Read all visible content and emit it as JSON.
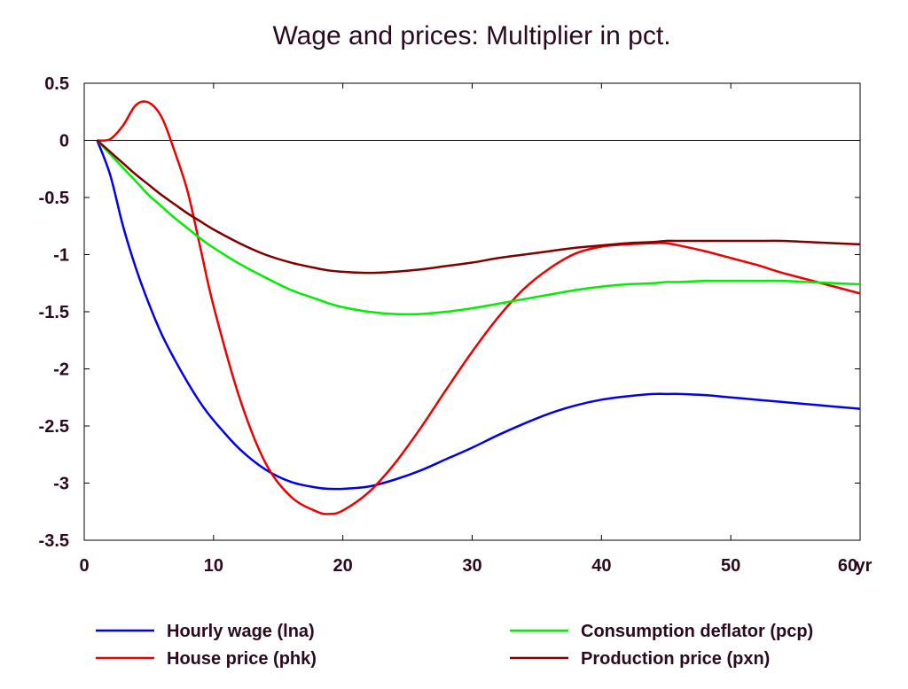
{
  "chart_data": {
    "type": "line",
    "title": "Wage and prices: Multiplier in pct.",
    "xlabel": "",
    "ylabel": "",
    "x_unit": "yr",
    "xlim": [
      0,
      60
    ],
    "ylim": [
      -3.5,
      0.5
    ],
    "x_ticks": [
      0,
      10,
      20,
      30,
      40,
      50,
      60
    ],
    "x_tick_labels": [
      "0",
      "10",
      "20",
      "30",
      "40",
      "50",
      "60"
    ],
    "y_ticks": [
      0.5,
      0,
      -0.5,
      -1,
      -1.5,
      -2,
      -2.5,
      -3,
      -3.5
    ],
    "y_tick_labels": [
      "0.5",
      "0",
      "-0.5",
      "-1",
      "-1.5",
      "-2",
      "-2.5",
      "-3",
      "-3.5"
    ],
    "zero_line": true,
    "grid": false,
    "legend_position": "bottom",
    "x": [
      1,
      2,
      3,
      4,
      5,
      6,
      7,
      8,
      9,
      10,
      12,
      14,
      16,
      18,
      19,
      20,
      22,
      24,
      26,
      28,
      30,
      32,
      34,
      36,
      38,
      40,
      42,
      44,
      45,
      46,
      48,
      50,
      52,
      54,
      56,
      58,
      60
    ],
    "series": [
      {
        "name": "Hourly wage (lna)",
        "color": "#0000ee",
        "values": [
          0,
          -0.3,
          -0.75,
          -1.12,
          -1.43,
          -1.7,
          -1.92,
          -2.12,
          -2.3,
          -2.45,
          -2.7,
          -2.88,
          -2.99,
          -3.04,
          -3.05,
          -3.05,
          -3.03,
          -2.97,
          -2.89,
          -2.79,
          -2.69,
          -2.58,
          -2.48,
          -2.39,
          -2.32,
          -2.27,
          -2.24,
          -2.22,
          -2.22,
          -2.22,
          -2.23,
          -2.25,
          -2.27,
          -2.29,
          -2.31,
          -2.33,
          -2.35
        ]
      },
      {
        "name": "House price (phk)",
        "color": "#ee0000",
        "values": [
          0,
          0.01,
          0.13,
          0.31,
          0.33,
          0.2,
          -0.1,
          -0.45,
          -0.95,
          -1.45,
          -2.25,
          -2.82,
          -3.12,
          -3.25,
          -3.27,
          -3.24,
          -3.08,
          -2.83,
          -2.52,
          -2.18,
          -1.85,
          -1.55,
          -1.3,
          -1.12,
          -0.99,
          -0.93,
          -0.91,
          -0.9,
          -0.9,
          -0.92,
          -0.97,
          -1.03,
          -1.09,
          -1.16,
          -1.22,
          -1.28,
          -1.34
        ]
      },
      {
        "name": "Consumption deflator (pcp)",
        "color": "#00ee00",
        "values": [
          0,
          -0.12,
          -0.24,
          -0.36,
          -0.48,
          -0.58,
          -0.68,
          -0.77,
          -0.86,
          -0.94,
          -1.08,
          -1.2,
          -1.31,
          -1.39,
          -1.43,
          -1.46,
          -1.5,
          -1.52,
          -1.52,
          -1.5,
          -1.47,
          -1.43,
          -1.39,
          -1.35,
          -1.31,
          -1.28,
          -1.26,
          -1.25,
          -1.24,
          -1.24,
          -1.23,
          -1.23,
          -1.23,
          -1.23,
          -1.24,
          -1.25,
          -1.26
        ]
      },
      {
        "name": "Production price (pxn)",
        "color": "#800000",
        "values": [
          0,
          -0.1,
          -0.2,
          -0.3,
          -0.39,
          -0.48,
          -0.56,
          -0.64,
          -0.71,
          -0.78,
          -0.9,
          -1.0,
          -1.07,
          -1.12,
          -1.14,
          -1.15,
          -1.16,
          -1.15,
          -1.13,
          -1.1,
          -1.07,
          -1.03,
          -1.0,
          -0.97,
          -0.94,
          -0.92,
          -0.9,
          -0.89,
          -0.88,
          -0.88,
          -0.88,
          -0.88,
          -0.88,
          -0.88,
          -0.89,
          -0.9,
          -0.91
        ]
      }
    ]
  }
}
